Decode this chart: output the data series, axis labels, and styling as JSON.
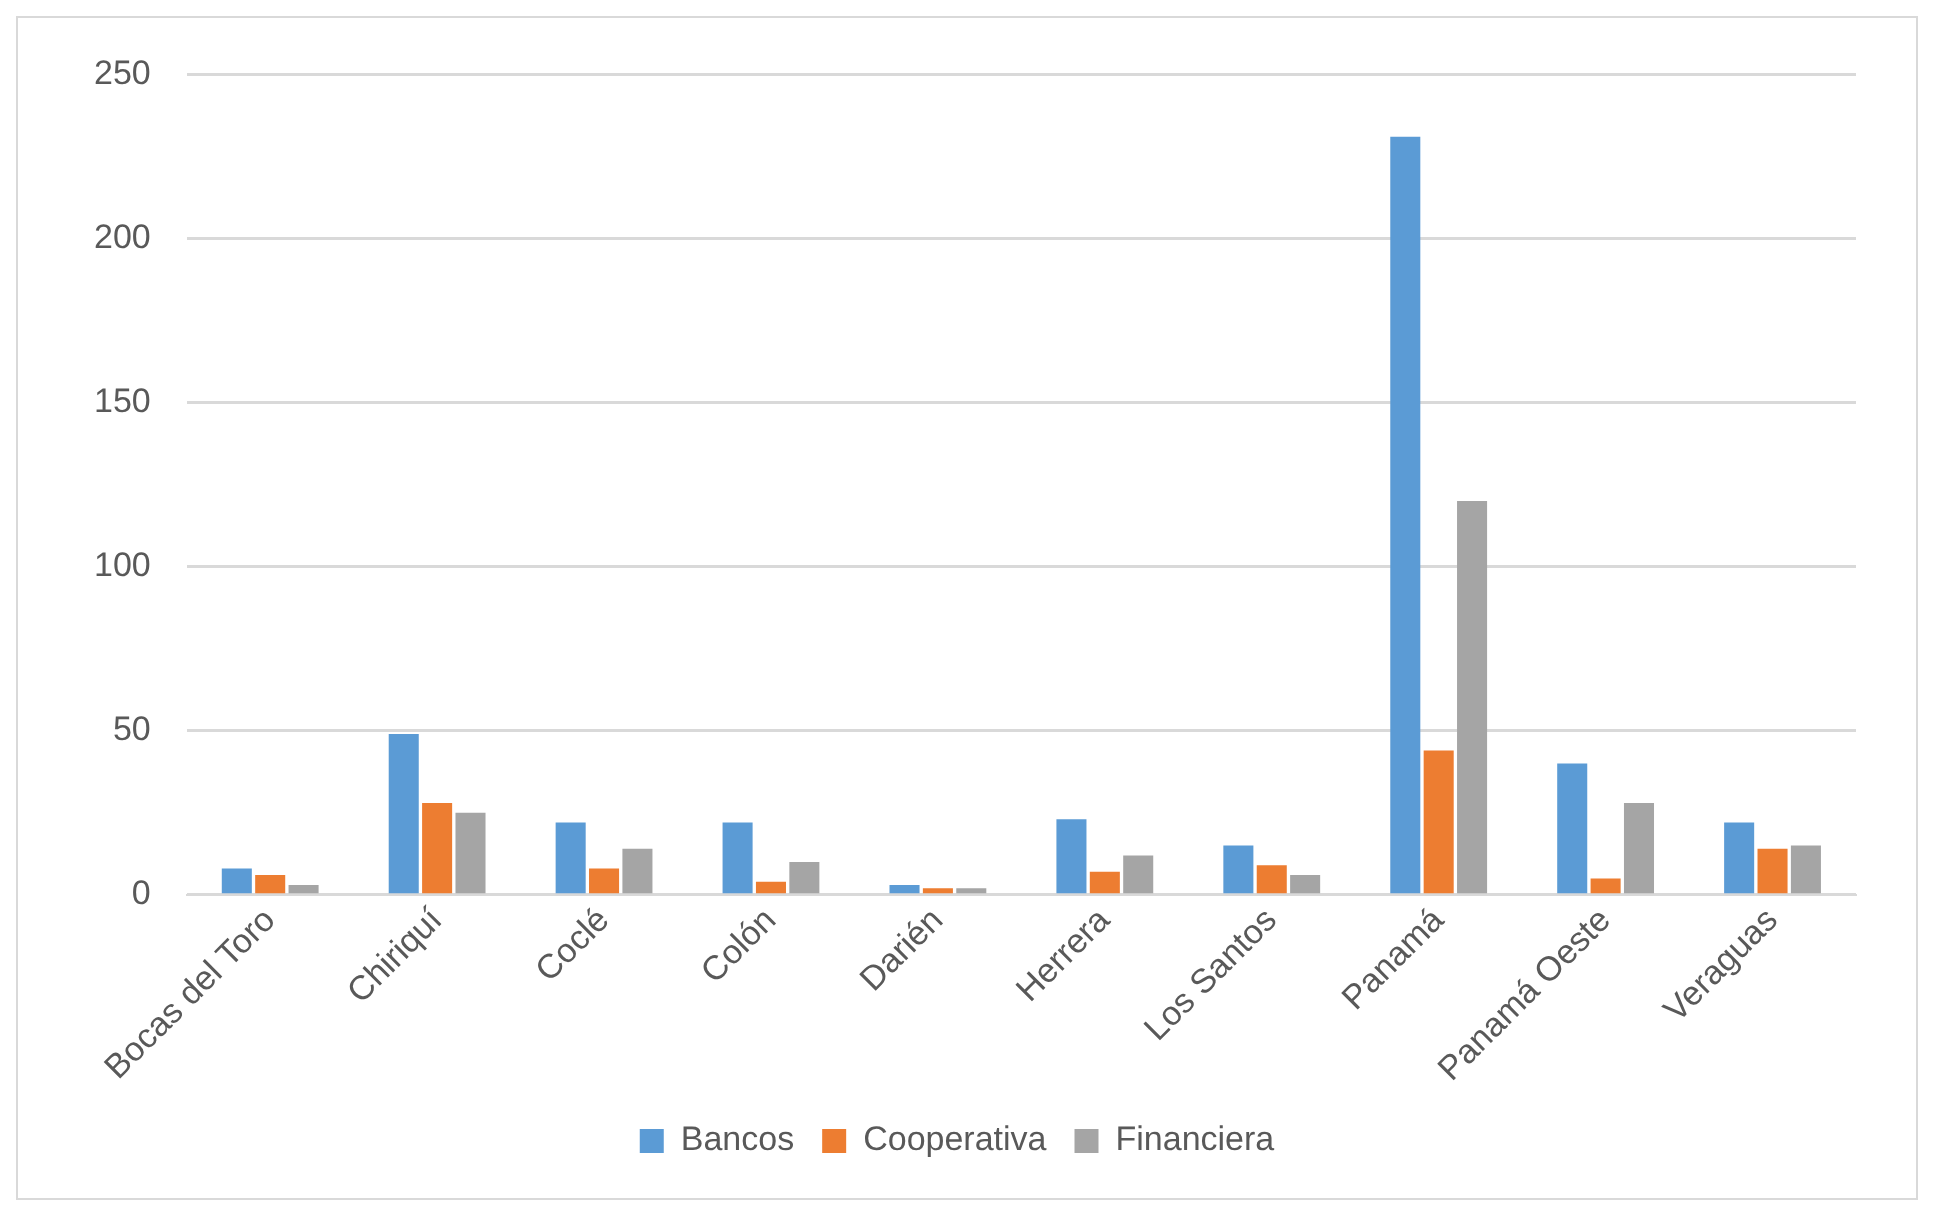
{
  "chart_data": {
    "type": "bar",
    "categories": [
      "Bocas del Toro",
      "Chiriquí",
      "Coclé",
      "Colón",
      "Darién",
      "Herrera",
      "Los Santos",
      "Panamá",
      "Panamá Oeste",
      "Veraguas"
    ],
    "series": [
      {
        "name": "Bancos",
        "color": "#5b9bd5",
        "values": [
          8,
          49,
          22,
          22,
          3,
          23,
          15,
          231,
          40,
          22
        ]
      },
      {
        "name": "Cooperativa",
        "color": "#ed7d31",
        "values": [
          6,
          28,
          8,
          4,
          2,
          7,
          9,
          44,
          5,
          14
        ]
      },
      {
        "name": "Financiera",
        "color": "#a5a5a5",
        "values": [
          3,
          25,
          14,
          10,
          2,
          12,
          6,
          120,
          28,
          15
        ]
      }
    ],
    "ylim": [
      0,
      250
    ],
    "yticks": [
      0,
      50,
      100,
      150,
      200,
      250
    ],
    "grid": "y",
    "legend": "bottom"
  }
}
